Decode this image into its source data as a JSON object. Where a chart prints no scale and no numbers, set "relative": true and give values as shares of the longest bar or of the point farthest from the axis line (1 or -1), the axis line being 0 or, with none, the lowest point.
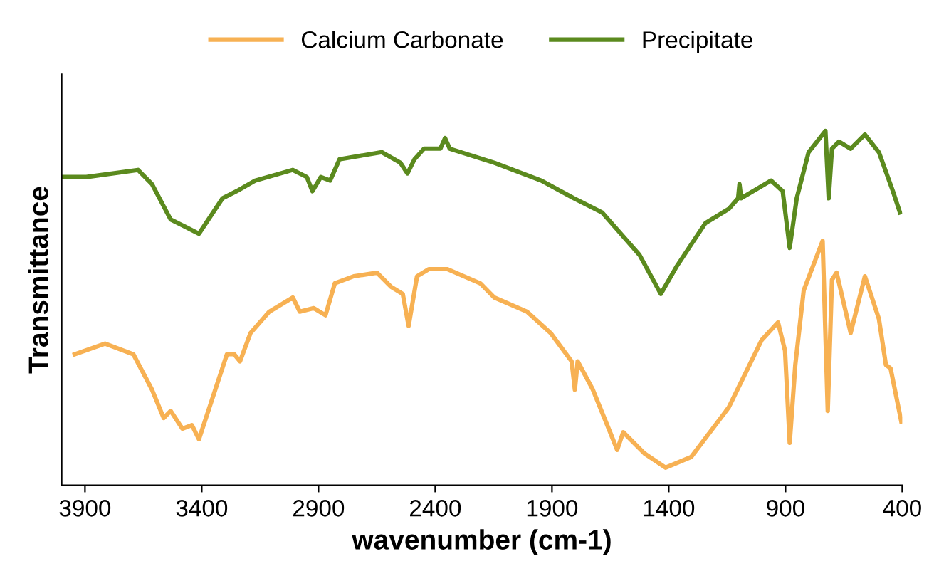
{
  "chart_data": {
    "type": "line",
    "xlabel": "wavenumber (cm-1)",
    "ylabel": "Transmittance",
    "relative": true,
    "legend": "top",
    "grid": false,
    "tick_labels": "x",
    "xlim": [
      4000,
      400
    ],
    "xticks": [
      3900,
      3400,
      2900,
      2400,
      1900,
      1400,
      900,
      400
    ],
    "series": [
      {
        "name": "Calcium Carbonate",
        "color": "#f7b153",
        "x": [
          3944,
          3814,
          3693,
          3613,
          3563,
          3533,
          3483,
          3442,
          3412,
          3352,
          3292,
          3261,
          3236,
          3191,
          3111,
          3010,
          2980,
          2920,
          2870,
          2830,
          2749,
          2649,
          2589,
          2539,
          2514,
          2478,
          2428,
          2348,
          2207,
          2147,
          2007,
          1906,
          1816,
          1802,
          1790,
          1725,
          1645,
          1621,
          1595,
          1504,
          1414,
          1304,
          1143,
          1002,
          932,
          902,
          882,
          858,
          822,
          741,
          719,
          701,
          681,
          621,
          560,
          500,
          470,
          450,
          404
        ],
        "values": [
          0.37,
          0.4,
          0.37,
          0.27,
          0.19,
          0.21,
          0.16,
          0.17,
          0.13,
          0.25,
          0.37,
          0.37,
          0.35,
          0.43,
          0.49,
          0.53,
          0.49,
          0.5,
          0.48,
          0.57,
          0.59,
          0.6,
          0.56,
          0.54,
          0.45,
          0.59,
          0.61,
          0.61,
          0.57,
          0.53,
          0.49,
          0.43,
          0.35,
          0.27,
          0.35,
          0.27,
          0.14,
          0.1,
          0.15,
          0.09,
          0.05,
          0.08,
          0.22,
          0.41,
          0.46,
          0.38,
          0.12,
          0.34,
          0.55,
          0.69,
          0.21,
          0.58,
          0.6,
          0.43,
          0.59,
          0.47,
          0.34,
          0.33,
          0.18
        ]
      },
      {
        "name": "Precipitate",
        "color": "#5b8a1e",
        "x": [
          3995,
          3894,
          3673,
          3613,
          3533,
          3472,
          3412,
          3311,
          3251,
          3171,
          3010,
          2950,
          2926,
          2890,
          2850,
          2810,
          2629,
          2549,
          2519,
          2489,
          2448,
          2378,
          2358,
          2338,
          2147,
          1946,
          1806,
          1685,
          1605,
          1525,
          1434,
          1364,
          1243,
          1143,
          1103,
          1097,
          1090,
          962,
          912,
          882,
          852,
          801,
          729,
          715,
          701,
          671,
          621,
          560,
          500,
          440,
          410
        ],
        "values": [
          0.87,
          0.87,
          0.89,
          0.85,
          0.75,
          0.73,
          0.71,
          0.81,
          0.83,
          0.86,
          0.89,
          0.87,
          0.83,
          0.87,
          0.86,
          0.92,
          0.94,
          0.91,
          0.88,
          0.92,
          0.95,
          0.95,
          0.98,
          0.95,
          0.91,
          0.86,
          0.81,
          0.77,
          0.71,
          0.65,
          0.54,
          0.62,
          0.74,
          0.78,
          0.81,
          0.85,
          0.81,
          0.86,
          0.83,
          0.67,
          0.81,
          0.94,
          1.0,
          0.81,
          0.95,
          0.97,
          0.95,
          0.99,
          0.94,
          0.83,
          0.77
        ]
      }
    ]
  }
}
